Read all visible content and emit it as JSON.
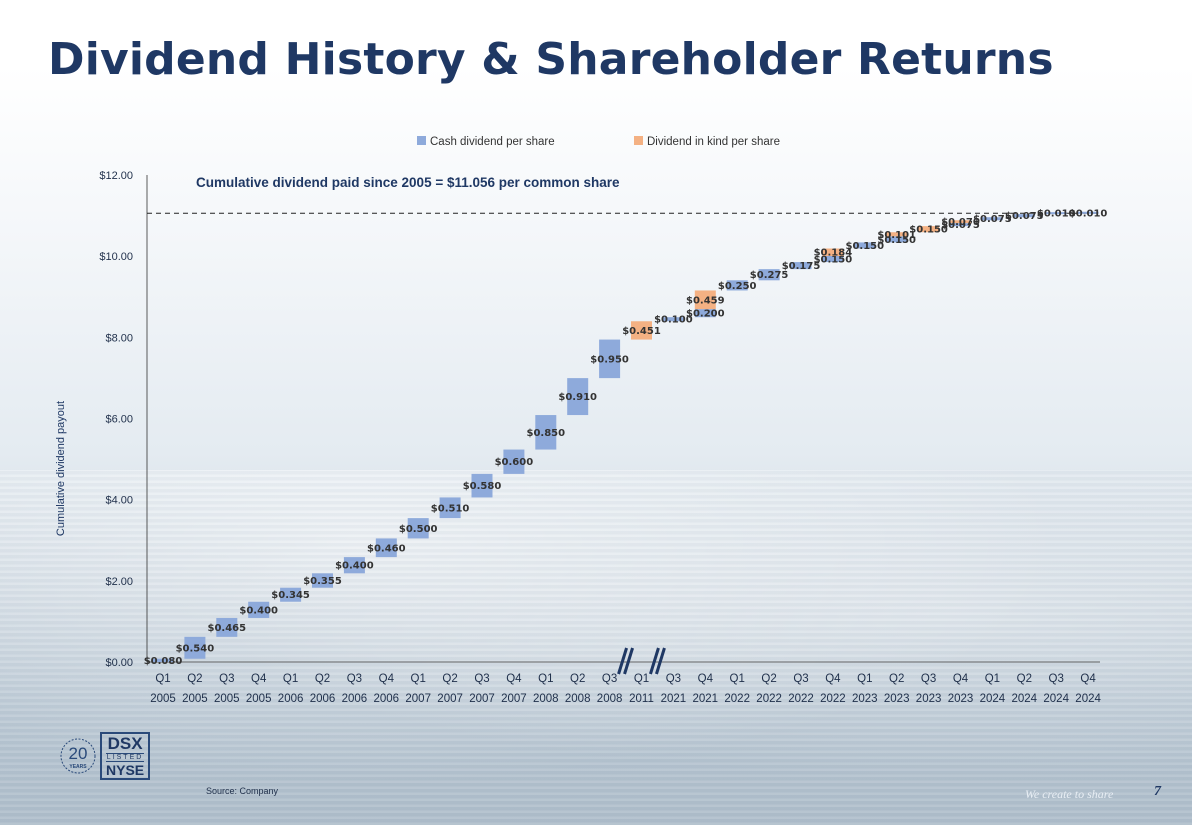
{
  "slide": {
    "title": "Dividend History & Shareholder Returns",
    "source": "Source: Company",
    "tagline": "We create to share",
    "page_number": "7"
  },
  "logo": {
    "years_number": "20",
    "years_label": "YEARS",
    "ticker": "DSX",
    "listed": "LISTED",
    "exchange": "NYSE"
  },
  "colors": {
    "cash": "#8eaadb",
    "in_kind": "#f4b183",
    "axis_text": "#1f2f4a",
    "title": "#1f3864"
  },
  "chart_data": {
    "type": "waterfall",
    "ylabel": "Cumulative dividend payout",
    "ylim": [
      0,
      12
    ],
    "yticks": [
      "$0.00",
      "$2.00",
      "$4.00",
      "$6.00",
      "$8.00",
      "$10.00",
      "$12.00"
    ],
    "annotation": "Cumulative dividend paid since 2005 = $11.056 per common share",
    "cumulative_total": 11.056,
    "legend": [
      "Cash dividend per share",
      "Dividend in kind per share"
    ],
    "legend_position": "top",
    "axis_break_after": "Q3 2008",
    "axis_break_after_2": "Q1 2011",
    "periods": [
      {
        "q": "Q1",
        "y": "2005",
        "cash": 0.08,
        "cash_label": "$0.080"
      },
      {
        "q": "Q2",
        "y": "2005",
        "cash": 0.54,
        "cash_label": "$0.540"
      },
      {
        "q": "Q3",
        "y": "2005",
        "cash": 0.465,
        "cash_label": "$0.465"
      },
      {
        "q": "Q4",
        "y": "2005",
        "cash": 0.4,
        "cash_label": "$0.400"
      },
      {
        "q": "Q1",
        "y": "2006",
        "cash": 0.345,
        "cash_label": "$0.345"
      },
      {
        "q": "Q2",
        "y": "2006",
        "cash": 0.355,
        "cash_label": "$0.355"
      },
      {
        "q": "Q3",
        "y": "2006",
        "cash": 0.4,
        "cash_label": "$0.400"
      },
      {
        "q": "Q4",
        "y": "2006",
        "cash": 0.46,
        "cash_label": "$0.460"
      },
      {
        "q": "Q1",
        "y": "2007",
        "cash": 0.5,
        "cash_label": "$0.500"
      },
      {
        "q": "Q2",
        "y": "2007",
        "cash": 0.51,
        "cash_label": "$0.510"
      },
      {
        "q": "Q3",
        "y": "2007",
        "cash": 0.58,
        "cash_label": "$0.580"
      },
      {
        "q": "Q4",
        "y": "2007",
        "cash": 0.6,
        "cash_label": "$0.600"
      },
      {
        "q": "Q1",
        "y": "2008",
        "cash": 0.85,
        "cash_label": "$0.850"
      },
      {
        "q": "Q2",
        "y": "2008",
        "cash": 0.91,
        "cash_label": "$0.910"
      },
      {
        "q": "Q3",
        "y": "2008",
        "cash": 0.95,
        "cash_label": "$0.950"
      },
      {
        "q": "Q1",
        "y": "2011",
        "kind": 0.451,
        "kind_label": "$0.451"
      },
      {
        "q": "Q3",
        "y": "2021",
        "cash": 0.1,
        "cash_label": "$0.100"
      },
      {
        "q": "Q4",
        "y": "2021",
        "cash": 0.2,
        "cash_label": "$0.200",
        "kind": 0.459,
        "kind_label": "$0.459"
      },
      {
        "q": "Q1",
        "y": "2022",
        "cash": 0.25,
        "cash_label": "$0.250"
      },
      {
        "q": "Q2",
        "y": "2022",
        "cash": 0.275,
        "cash_label": "$0.275"
      },
      {
        "q": "Q3",
        "y": "2022",
        "cash": 0.175,
        "cash_label": "$0.175"
      },
      {
        "q": "Q4",
        "y": "2022",
        "cash": 0.15,
        "cash_label": "$0.150",
        "kind": 0.184,
        "kind_label": "$0.184"
      },
      {
        "q": "Q1",
        "y": "2023",
        "cash": 0.15,
        "cash_label": "$0.150"
      },
      {
        "q": "Q2",
        "y": "2023",
        "cash": 0.15,
        "cash_label": "$0.150",
        "kind": 0.101,
        "kind_label": "$0.101"
      },
      {
        "q": "Q3",
        "y": "2023",
        "kind": 0.15,
        "kind_label": "$0.150"
      },
      {
        "q": "Q4",
        "y": "2023",
        "cash": 0.075,
        "cash_label": "$0.075",
        "kind": 0.07,
        "kind_label": "$0.070"
      },
      {
        "q": "Q1",
        "y": "2024",
        "cash": 0.075,
        "cash_label": "$0.075"
      },
      {
        "q": "Q2",
        "y": "2024",
        "cash": 0.075,
        "cash_label": "$0.075"
      },
      {
        "q": "Q3",
        "y": "2024",
        "cash": 0.01,
        "cash_label": "$0.010"
      },
      {
        "q": "Q4",
        "y": "2024",
        "cash": 0.01,
        "cash_label": "$0.010"
      }
    ]
  }
}
